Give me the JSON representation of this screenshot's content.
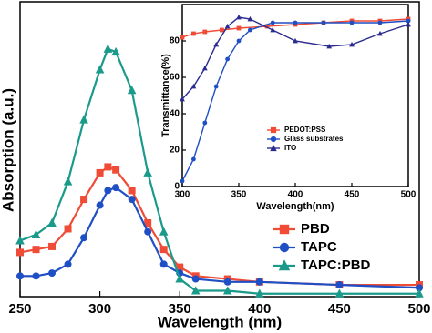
{
  "chart_data": [
    {
      "type": "line",
      "x_label": "Wavelength (nm)",
      "y_label": "Absorption (a.u.)",
      "xlim": [
        250,
        500
      ],
      "xticks": [
        250,
        300,
        350,
        400,
        450,
        500
      ],
      "ylim": [
        0,
        1
      ],
      "legend": "lower right",
      "series": [
        {
          "name": "PBD",
          "color": "#ef4b36",
          "marker": "square",
          "x": [
            250,
            260,
            270,
            280,
            290,
            300,
            305,
            310,
            320,
            330,
            340,
            350,
            360,
            380,
            400,
            450,
            500
          ],
          "values": [
            0.15,
            0.16,
            0.17,
            0.23,
            0.33,
            0.42,
            0.44,
            0.43,
            0.36,
            0.25,
            0.16,
            0.1,
            0.07,
            0.06,
            0.05,
            0.04,
            0.04
          ]
        },
        {
          "name": "TAPC",
          "color": "#1f4fc4",
          "marker": "circle",
          "x": [
            250,
            260,
            270,
            280,
            290,
            300,
            305,
            310,
            320,
            330,
            340,
            350,
            360,
            380,
            400,
            450,
            500
          ],
          "values": [
            0.07,
            0.07,
            0.08,
            0.11,
            0.2,
            0.31,
            0.36,
            0.37,
            0.33,
            0.22,
            0.11,
            0.08,
            0.06,
            0.05,
            0.05,
            0.04,
            0.03
          ]
        },
        {
          "name": "TAPC:PBD",
          "color": "#1a9a8a",
          "marker": "triangle",
          "x": [
            250,
            260,
            270,
            280,
            290,
            300,
            305,
            310,
            320,
            330,
            340,
            350,
            360,
            380,
            400,
            450,
            500
          ],
          "values": [
            0.19,
            0.21,
            0.25,
            0.39,
            0.6,
            0.77,
            0.84,
            0.83,
            0.7,
            0.42,
            0.22,
            0.06,
            0.02,
            0.02,
            0.01,
            0.01,
            0.01
          ]
        }
      ]
    },
    {
      "type": "line",
      "x_label": "Wavelength(nm)",
      "y_label": "Transmittance(%)",
      "xlim": [
        300,
        500
      ],
      "xticks": [
        300,
        350,
        400,
        450,
        500
      ],
      "ylim": [
        0,
        100
      ],
      "yticks": [
        0,
        20,
        40,
        60,
        80
      ],
      "legend": "lower right",
      "series": [
        {
          "name": "PEDOT:PSS",
          "color": "#ef4b36",
          "marker": "square",
          "x": [
            300,
            310,
            320,
            335,
            350,
            375,
            400,
            425,
            450,
            475,
            500
          ],
          "values": [
            82,
            84,
            85,
            86,
            87,
            88,
            89,
            90,
            91,
            91,
            92
          ]
        },
        {
          "name": "Glass substrates",
          "color": "#1f4fc4",
          "marker": "circle",
          "x": [
            300,
            310,
            320,
            330,
            340,
            350,
            360,
            380,
            400,
            425,
            450,
            475,
            500
          ],
          "values": [
            3,
            15,
            35,
            55,
            70,
            80,
            86,
            90,
            90,
            90,
            90,
            90,
            91
          ]
        },
        {
          "name": "ITO",
          "color": "#2b2b8f",
          "marker": "triangle",
          "x": [
            300,
            310,
            320,
            330,
            340,
            350,
            360,
            380,
            400,
            430,
            450,
            475,
            500
          ],
          "values": [
            48,
            55,
            65,
            78,
            88,
            93,
            92,
            86,
            80,
            77,
            78,
            84,
            89
          ]
        }
      ]
    }
  ]
}
